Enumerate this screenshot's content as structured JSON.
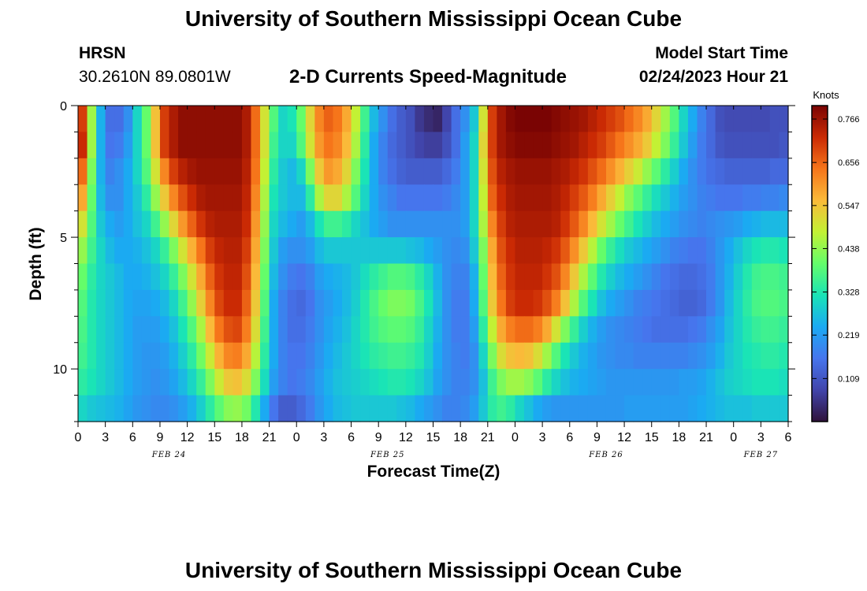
{
  "header": {
    "title": "University of Southern Mississippi Ocean Cube",
    "station": "HRSN",
    "coords": "30.2610N  89.0801W",
    "subtitle": "2-D Currents Speed-Magnitude",
    "model_label": "Model Start Time",
    "model_time": "02/24/2023 Hour 21"
  },
  "footer": {
    "title": "University of Southern Mississippi Ocean Cube"
  },
  "chart_data": {
    "type": "heatmap",
    "title": "2-D Currents Speed-Magnitude",
    "xlabel": "Forecast Time(Z)",
    "ylabel": "Depth (ft)",
    "x_range_hours": [
      0,
      78
    ],
    "x_ticks": [
      {
        "h": 0,
        "label": "0"
      },
      {
        "h": 3,
        "label": "3"
      },
      {
        "h": 6,
        "label": "6"
      },
      {
        "h": 9,
        "label": "9"
      },
      {
        "h": 12,
        "label": "12"
      },
      {
        "h": 15,
        "label": "15"
      },
      {
        "h": 18,
        "label": "18"
      },
      {
        "h": 21,
        "label": "21"
      },
      {
        "h": 24,
        "label": "0"
      },
      {
        "h": 27,
        "label": "3"
      },
      {
        "h": 30,
        "label": "6"
      },
      {
        "h": 33,
        "label": "9"
      },
      {
        "h": 36,
        "label": "12"
      },
      {
        "h": 39,
        "label": "15"
      },
      {
        "h": 42,
        "label": "18"
      },
      {
        "h": 45,
        "label": "21"
      },
      {
        "h": 48,
        "label": "0"
      },
      {
        "h": 51,
        "label": "3"
      },
      {
        "h": 54,
        "label": "6"
      },
      {
        "h": 57,
        "label": "9"
      },
      {
        "h": 60,
        "label": "12"
      },
      {
        "h": 63,
        "label": "15"
      },
      {
        "h": 66,
        "label": "18"
      },
      {
        "h": 69,
        "label": "21"
      },
      {
        "h": 72,
        "label": "0"
      },
      {
        "h": 75,
        "label": "3"
      },
      {
        "h": 78,
        "label": "6"
      }
    ],
    "date_labels": [
      {
        "h": 10,
        "label": "FEB 24"
      },
      {
        "h": 34,
        "label": "FEB 25"
      },
      {
        "h": 58,
        "label": "FEB 26"
      },
      {
        "h": 75,
        "label": "FEB 27"
      }
    ],
    "y_range_ft": [
      0,
      12
    ],
    "y_ticks": [
      {
        "v": 0,
        "label": "0"
      },
      {
        "v": 5,
        "label": "5"
      },
      {
        "v": 10,
        "label": "10"
      }
    ],
    "colorbar": {
      "unit": "Knots",
      "range": [
        0,
        0.8
      ],
      "ticks": [
        {
          "v": 0.109,
          "label": "0.109"
        },
        {
          "v": 0.219,
          "label": "0.219"
        },
        {
          "v": 0.328,
          "label": "0.328"
        },
        {
          "v": 0.438,
          "label": "0.438"
        },
        {
          "v": 0.547,
          "label": "0.547"
        },
        {
          "v": 0.656,
          "label": "0.656"
        },
        {
          "v": 0.766,
          "label": "0.766"
        }
      ]
    },
    "depth_levels_ft": [
      0.5,
      1.5,
      2.5,
      3.5,
      4.5,
      5.5,
      6.5,
      7.5,
      8.5,
      9.5,
      10.5,
      11.5
    ],
    "time_steps_hours": [
      0,
      1,
      2,
      3,
      4,
      5,
      6,
      7,
      8,
      9,
      10,
      11,
      12,
      13,
      14,
      15,
      16,
      17,
      18,
      19,
      20,
      21,
      22,
      23,
      24,
      25,
      26,
      27,
      28,
      29,
      30,
      31,
      32,
      33,
      34,
      35,
      36,
      37,
      38,
      39,
      40,
      41,
      42,
      43,
      44,
      45,
      46,
      47,
      48,
      49,
      50,
      51,
      52,
      53,
      54,
      55,
      56,
      57,
      58,
      59,
      60,
      61,
      62,
      63,
      64,
      65,
      66,
      67,
      68,
      69,
      70,
      71,
      72,
      73,
      74,
      75,
      76,
      77
    ],
    "values_knots": [
      [
        0.7,
        0.45,
        0.25,
        0.15,
        0.15,
        0.2,
        0.3,
        0.4,
        0.55,
        0.7,
        0.75,
        0.78,
        0.78,
        0.78,
        0.78,
        0.78,
        0.78,
        0.78,
        0.75,
        0.65,
        0.5,
        0.38,
        0.3,
        0.32,
        0.4,
        0.52,
        0.62,
        0.66,
        0.64,
        0.58,
        0.48,
        0.36,
        0.26,
        0.2,
        0.15,
        0.12,
        0.1,
        0.06,
        0.04,
        0.03,
        0.08,
        0.15,
        0.2,
        0.28,
        0.5,
        0.7,
        0.76,
        0.79,
        0.8,
        0.8,
        0.8,
        0.8,
        0.79,
        0.78,
        0.77,
        0.76,
        0.74,
        0.72,
        0.7,
        0.68,
        0.65,
        0.62,
        0.58,
        0.52,
        0.45,
        0.38,
        0.3,
        0.24,
        0.18,
        0.14,
        0.1,
        0.09,
        0.09,
        0.09,
        0.09,
        0.09,
        0.1,
        0.1
      ],
      [
        0.72,
        0.45,
        0.25,
        0.16,
        0.17,
        0.22,
        0.3,
        0.4,
        0.55,
        0.7,
        0.75,
        0.78,
        0.78,
        0.78,
        0.78,
        0.78,
        0.78,
        0.78,
        0.75,
        0.65,
        0.5,
        0.36,
        0.3,
        0.3,
        0.38,
        0.5,
        0.6,
        0.64,
        0.62,
        0.56,
        0.46,
        0.34,
        0.24,
        0.18,
        0.14,
        0.12,
        0.1,
        0.08,
        0.07,
        0.07,
        0.1,
        0.15,
        0.22,
        0.3,
        0.52,
        0.7,
        0.76,
        0.78,
        0.79,
        0.79,
        0.79,
        0.79,
        0.78,
        0.77,
        0.76,
        0.74,
        0.72,
        0.7,
        0.67,
        0.64,
        0.61,
        0.58,
        0.54,
        0.48,
        0.42,
        0.35,
        0.28,
        0.22,
        0.17,
        0.14,
        0.11,
        0.1,
        0.1,
        0.1,
        0.1,
        0.1,
        0.1,
        0.11
      ],
      [
        0.65,
        0.42,
        0.25,
        0.18,
        0.2,
        0.24,
        0.3,
        0.38,
        0.5,
        0.62,
        0.7,
        0.74,
        0.76,
        0.77,
        0.77,
        0.77,
        0.77,
        0.77,
        0.74,
        0.64,
        0.48,
        0.34,
        0.28,
        0.26,
        0.3,
        0.42,
        0.54,
        0.6,
        0.58,
        0.52,
        0.42,
        0.32,
        0.24,
        0.18,
        0.15,
        0.13,
        0.12,
        0.12,
        0.12,
        0.12,
        0.14,
        0.17,
        0.22,
        0.3,
        0.5,
        0.68,
        0.74,
        0.76,
        0.77,
        0.77,
        0.77,
        0.77,
        0.76,
        0.75,
        0.73,
        0.71,
        0.68,
        0.65,
        0.61,
        0.57,
        0.53,
        0.49,
        0.44,
        0.39,
        0.34,
        0.29,
        0.24,
        0.2,
        0.17,
        0.15,
        0.14,
        0.13,
        0.13,
        0.13,
        0.13,
        0.13,
        0.14,
        0.14
      ],
      [
        0.58,
        0.4,
        0.26,
        0.2,
        0.2,
        0.24,
        0.28,
        0.34,
        0.44,
        0.54,
        0.62,
        0.68,
        0.72,
        0.75,
        0.76,
        0.76,
        0.76,
        0.76,
        0.73,
        0.62,
        0.46,
        0.32,
        0.28,
        0.26,
        0.26,
        0.34,
        0.46,
        0.52,
        0.52,
        0.46,
        0.38,
        0.3,
        0.24,
        0.2,
        0.18,
        0.16,
        0.16,
        0.16,
        0.16,
        0.16,
        0.17,
        0.19,
        0.22,
        0.3,
        0.48,
        0.66,
        0.72,
        0.75,
        0.76,
        0.76,
        0.76,
        0.76,
        0.75,
        0.73,
        0.7,
        0.67,
        0.63,
        0.58,
        0.53,
        0.48,
        0.43,
        0.39,
        0.35,
        0.31,
        0.28,
        0.25,
        0.22,
        0.2,
        0.18,
        0.17,
        0.16,
        0.16,
        0.16,
        0.17,
        0.17,
        0.18,
        0.18,
        0.19
      ],
      [
        0.5,
        0.38,
        0.28,
        0.24,
        0.22,
        0.24,
        0.27,
        0.3,
        0.36,
        0.44,
        0.52,
        0.6,
        0.66,
        0.71,
        0.74,
        0.75,
        0.75,
        0.75,
        0.72,
        0.6,
        0.44,
        0.3,
        0.26,
        0.24,
        0.22,
        0.26,
        0.32,
        0.36,
        0.36,
        0.34,
        0.3,
        0.27,
        0.24,
        0.22,
        0.2,
        0.2,
        0.2,
        0.2,
        0.2,
        0.2,
        0.2,
        0.2,
        0.22,
        0.3,
        0.46,
        0.62,
        0.7,
        0.74,
        0.75,
        0.75,
        0.75,
        0.75,
        0.74,
        0.71,
        0.67,
        0.62,
        0.56,
        0.5,
        0.45,
        0.4,
        0.36,
        0.32,
        0.29,
        0.26,
        0.24,
        0.22,
        0.2,
        0.19,
        0.18,
        0.19,
        0.2,
        0.21,
        0.22,
        0.24,
        0.25,
        0.26,
        0.26,
        0.26
      ],
      [
        0.44,
        0.36,
        0.3,
        0.26,
        0.24,
        0.24,
        0.25,
        0.27,
        0.3,
        0.35,
        0.42,
        0.5,
        0.57,
        0.64,
        0.7,
        0.73,
        0.74,
        0.74,
        0.7,
        0.58,
        0.42,
        0.28,
        0.22,
        0.2,
        0.2,
        0.22,
        0.26,
        0.28,
        0.28,
        0.28,
        0.28,
        0.28,
        0.28,
        0.28,
        0.28,
        0.28,
        0.27,
        0.26,
        0.24,
        0.22,
        0.2,
        0.19,
        0.2,
        0.28,
        0.42,
        0.58,
        0.68,
        0.72,
        0.74,
        0.74,
        0.74,
        0.73,
        0.71,
        0.67,
        0.61,
        0.54,
        0.47,
        0.4,
        0.35,
        0.31,
        0.28,
        0.26,
        0.24,
        0.22,
        0.2,
        0.18,
        0.17,
        0.16,
        0.16,
        0.18,
        0.21,
        0.24,
        0.27,
        0.3,
        0.32,
        0.33,
        0.33,
        0.32
      ],
      [
        0.4,
        0.34,
        0.3,
        0.28,
        0.26,
        0.24,
        0.24,
        0.25,
        0.27,
        0.3,
        0.35,
        0.42,
        0.5,
        0.58,
        0.66,
        0.71,
        0.73,
        0.73,
        0.68,
        0.56,
        0.4,
        0.26,
        0.2,
        0.17,
        0.16,
        0.18,
        0.22,
        0.24,
        0.25,
        0.26,
        0.28,
        0.31,
        0.34,
        0.36,
        0.38,
        0.38,
        0.37,
        0.34,
        0.3,
        0.25,
        0.2,
        0.18,
        0.18,
        0.25,
        0.4,
        0.56,
        0.66,
        0.71,
        0.73,
        0.73,
        0.73,
        0.71,
        0.68,
        0.62,
        0.54,
        0.46,
        0.39,
        0.33,
        0.29,
        0.26,
        0.24,
        0.22,
        0.2,
        0.18,
        0.16,
        0.15,
        0.14,
        0.14,
        0.15,
        0.17,
        0.21,
        0.25,
        0.29,
        0.33,
        0.36,
        0.37,
        0.37,
        0.36
      ],
      [
        0.38,
        0.33,
        0.3,
        0.28,
        0.26,
        0.24,
        0.23,
        0.23,
        0.24,
        0.26,
        0.3,
        0.36,
        0.44,
        0.53,
        0.62,
        0.69,
        0.72,
        0.72,
        0.66,
        0.54,
        0.38,
        0.24,
        0.18,
        0.15,
        0.14,
        0.16,
        0.2,
        0.22,
        0.24,
        0.26,
        0.29,
        0.33,
        0.37,
        0.4,
        0.42,
        0.42,
        0.41,
        0.37,
        0.32,
        0.26,
        0.2,
        0.17,
        0.17,
        0.24,
        0.38,
        0.54,
        0.64,
        0.7,
        0.72,
        0.72,
        0.71,
        0.68,
        0.63,
        0.55,
        0.46,
        0.38,
        0.32,
        0.27,
        0.24,
        0.22,
        0.2,
        0.18,
        0.17,
        0.16,
        0.15,
        0.14,
        0.13,
        0.13,
        0.14,
        0.17,
        0.21,
        0.26,
        0.3,
        0.34,
        0.37,
        0.38,
        0.38,
        0.37
      ],
      [
        0.37,
        0.33,
        0.3,
        0.28,
        0.26,
        0.24,
        0.22,
        0.22,
        0.22,
        0.24,
        0.27,
        0.32,
        0.38,
        0.46,
        0.56,
        0.64,
        0.68,
        0.69,
        0.63,
        0.51,
        0.36,
        0.24,
        0.18,
        0.15,
        0.15,
        0.17,
        0.2,
        0.23,
        0.25,
        0.27,
        0.3,
        0.33,
        0.36,
        0.38,
        0.39,
        0.39,
        0.38,
        0.35,
        0.3,
        0.25,
        0.2,
        0.17,
        0.17,
        0.22,
        0.34,
        0.48,
        0.58,
        0.63,
        0.65,
        0.65,
        0.63,
        0.58,
        0.5,
        0.42,
        0.35,
        0.29,
        0.25,
        0.22,
        0.2,
        0.19,
        0.18,
        0.17,
        0.16,
        0.15,
        0.15,
        0.15,
        0.15,
        0.16,
        0.17,
        0.2,
        0.23,
        0.27,
        0.3,
        0.33,
        0.35,
        0.36,
        0.36,
        0.35
      ],
      [
        0.36,
        0.33,
        0.3,
        0.28,
        0.26,
        0.24,
        0.22,
        0.21,
        0.21,
        0.22,
        0.25,
        0.29,
        0.34,
        0.41,
        0.49,
        0.57,
        0.62,
        0.63,
        0.58,
        0.47,
        0.34,
        0.24,
        0.18,
        0.16,
        0.16,
        0.18,
        0.21,
        0.24,
        0.26,
        0.28,
        0.3,
        0.32,
        0.34,
        0.35,
        0.36,
        0.36,
        0.35,
        0.33,
        0.29,
        0.24,
        0.2,
        0.18,
        0.17,
        0.2,
        0.3,
        0.42,
        0.51,
        0.55,
        0.56,
        0.55,
        0.51,
        0.45,
        0.38,
        0.32,
        0.28,
        0.25,
        0.23,
        0.21,
        0.2,
        0.19,
        0.19,
        0.18,
        0.18,
        0.18,
        0.18,
        0.18,
        0.18,
        0.19,
        0.2,
        0.22,
        0.25,
        0.28,
        0.3,
        0.32,
        0.33,
        0.34,
        0.34,
        0.33
      ],
      [
        0.34,
        0.32,
        0.3,
        0.28,
        0.26,
        0.24,
        0.22,
        0.21,
        0.2,
        0.21,
        0.23,
        0.26,
        0.3,
        0.35,
        0.42,
        0.49,
        0.54,
        0.55,
        0.51,
        0.42,
        0.31,
        0.22,
        0.18,
        0.16,
        0.17,
        0.19,
        0.22,
        0.25,
        0.27,
        0.28,
        0.29,
        0.3,
        0.31,
        0.32,
        0.33,
        0.33,
        0.32,
        0.3,
        0.27,
        0.23,
        0.2,
        0.18,
        0.18,
        0.2,
        0.27,
        0.36,
        0.42,
        0.45,
        0.45,
        0.43,
        0.39,
        0.34,
        0.3,
        0.27,
        0.25,
        0.24,
        0.23,
        0.22,
        0.21,
        0.21,
        0.21,
        0.21,
        0.21,
        0.21,
        0.21,
        0.21,
        0.22,
        0.22,
        0.23,
        0.25,
        0.27,
        0.29,
        0.3,
        0.31,
        0.32,
        0.32,
        0.32,
        0.31
      ],
      [
        0.3,
        0.28,
        0.27,
        0.26,
        0.25,
        0.23,
        0.21,
        0.2,
        0.19,
        0.19,
        0.2,
        0.22,
        0.25,
        0.29,
        0.34,
        0.39,
        0.43,
        0.44,
        0.41,
        0.33,
        0.24,
        0.16,
        0.12,
        0.12,
        0.14,
        0.17,
        0.21,
        0.24,
        0.26,
        0.27,
        0.28,
        0.28,
        0.28,
        0.28,
        0.28,
        0.27,
        0.26,
        0.24,
        0.22,
        0.2,
        0.18,
        0.18,
        0.19,
        0.22,
        0.28,
        0.34,
        0.36,
        0.34,
        0.3,
        0.27,
        0.24,
        0.22,
        0.21,
        0.21,
        0.21,
        0.21,
        0.21,
        0.21,
        0.21,
        0.21,
        0.22,
        0.22,
        0.22,
        0.22,
        0.22,
        0.22,
        0.22,
        0.23,
        0.24,
        0.25,
        0.26,
        0.27,
        0.27,
        0.27,
        0.28,
        0.28,
        0.28,
        0.28
      ]
    ]
  }
}
